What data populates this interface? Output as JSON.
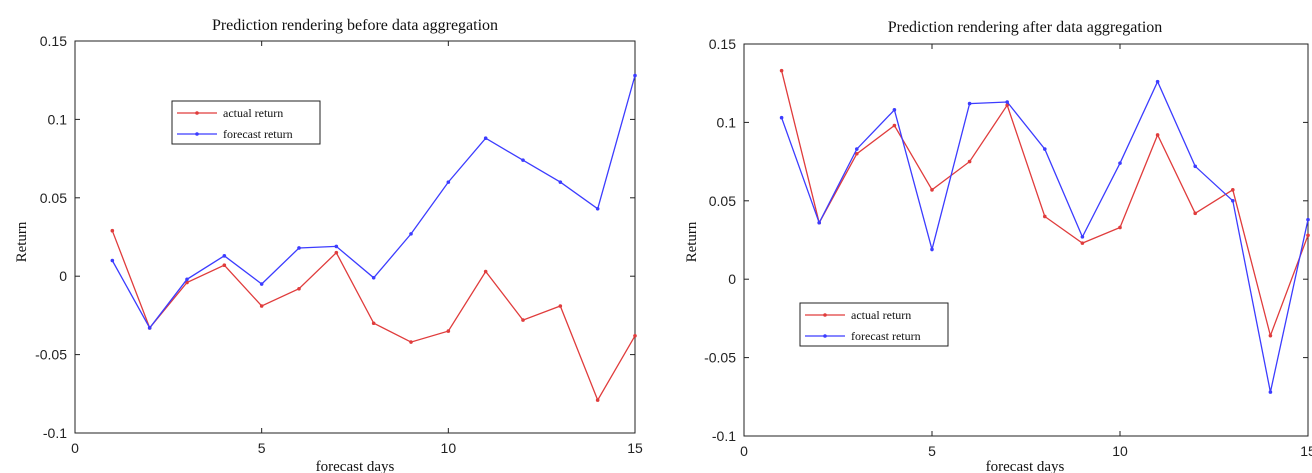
{
  "chart_data": [
    {
      "type": "line",
      "title": "Prediction rendering before data aggregation",
      "xlabel": "forecast days",
      "ylabel": "Return",
      "xlim": [
        0,
        15
      ],
      "ylim": [
        -0.1,
        0.15
      ],
      "xticks": [
        0,
        5,
        10,
        15
      ],
      "yticks": [
        -0.1,
        -0.05,
        0,
        0.05,
        0.1,
        0.15
      ],
      "xtick_labels": [
        "0",
        "5",
        "10",
        "15"
      ],
      "ytick_labels": [
        "-0.1",
        "-0.05",
        "0",
        "0.05",
        "0.1",
        "0.15"
      ],
      "grid": false,
      "legend_position": "upper-left",
      "x": [
        1,
        2,
        3,
        4,
        5,
        6,
        7,
        8,
        9,
        10,
        11,
        12,
        13,
        14,
        15
      ],
      "series": [
        {
          "name": "actual return",
          "color": "#e03c3c",
          "values": [
            0.029,
            -0.033,
            -0.004,
            0.007,
            -0.019,
            -0.008,
            0.015,
            -0.03,
            -0.042,
            -0.035,
            0.003,
            -0.028,
            -0.019,
            -0.079,
            -0.038
          ]
        },
        {
          "name": "forecast return",
          "color": "#3c3cff",
          "values": [
            0.01,
            -0.033,
            -0.002,
            0.013,
            -0.005,
            0.018,
            0.019,
            -0.001,
            0.027,
            0.06,
            0.088,
            0.074,
            0.06,
            0.043,
            0.128
          ]
        }
      ]
    },
    {
      "type": "line",
      "title": "Prediction rendering after data aggregation",
      "xlabel": "forecast days",
      "ylabel": "Return",
      "xlim": [
        0,
        15
      ],
      "ylim": [
        -0.1,
        0.15
      ],
      "xticks": [
        0,
        5,
        10,
        15
      ],
      "yticks": [
        -0.1,
        -0.05,
        0,
        0.05,
        0.1,
        0.15
      ],
      "xtick_labels": [
        "0",
        "5",
        "10",
        "15"
      ],
      "ytick_labels": [
        "-0.1",
        "-0.05",
        "0",
        "0.05",
        "0.1",
        "0.15"
      ],
      "grid": false,
      "legend_position": "lower-left",
      "x": [
        1,
        2,
        3,
        4,
        5,
        6,
        7,
        8,
        9,
        10,
        11,
        12,
        13,
        14,
        15
      ],
      "series": [
        {
          "name": "actual return",
          "color": "#e03c3c",
          "values": [
            0.133,
            0.036,
            0.08,
            0.098,
            0.057,
            0.075,
            0.111,
            0.04,
            0.023,
            0.033,
            0.092,
            0.042,
            0.057,
            -0.036,
            0.028
          ]
        },
        {
          "name": "forecast return",
          "color": "#3c3cff",
          "values": [
            0.103,
            0.036,
            0.083,
            0.108,
            0.019,
            0.112,
            0.113,
            0.083,
            0.027,
            0.074,
            0.126,
            0.072,
            0.05,
            -0.072,
            0.038
          ]
        }
      ]
    }
  ]
}
